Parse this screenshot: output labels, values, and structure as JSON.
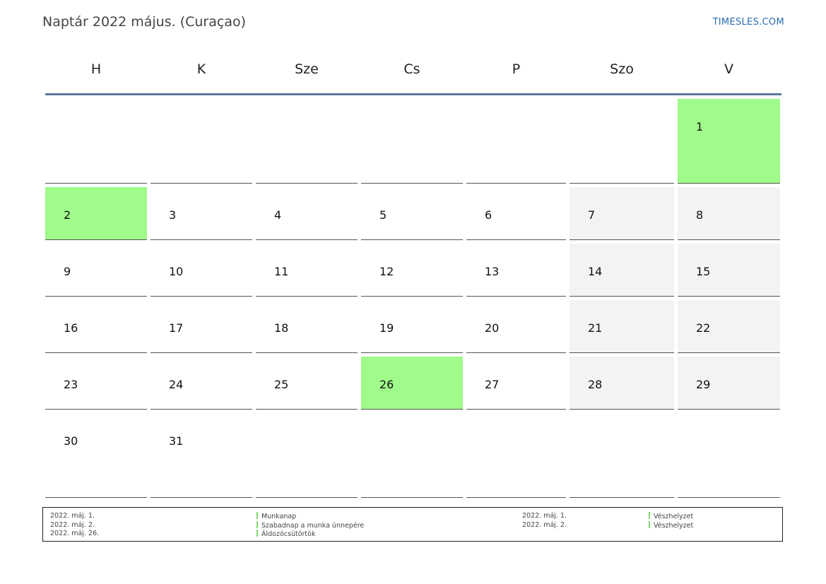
{
  "title": "Naptár 2022 május. (Curaçao)",
  "brand": "TIMESLES.COM",
  "colors": {
    "holiday": "#9ffb8a",
    "weekend": "#f3f3f3",
    "header_rule": "#5b77a0",
    "link": "#2a6db5"
  },
  "weekdays": [
    "H",
    "K",
    "Sze",
    "Cs",
    "P",
    "Szo",
    "V"
  ],
  "weeks": [
    [
      "",
      "",
      "",
      "",
      "",
      "",
      "1"
    ],
    [
      "2",
      "3",
      "4",
      "5",
      "6",
      "7",
      "8"
    ],
    [
      "9",
      "10",
      "11",
      "12",
      "13",
      "14",
      "15"
    ],
    [
      "16",
      "17",
      "18",
      "19",
      "20",
      "21",
      "22"
    ],
    [
      "23",
      "24",
      "25",
      "26",
      "27",
      "28",
      "29"
    ],
    [
      "30",
      "31",
      "",
      "",
      "",
      "",
      ""
    ]
  ],
  "holidays": [
    "1",
    "2",
    "26"
  ],
  "legend": {
    "left_dates": [
      "2022. máj. 1.",
      "2022. máj. 2.",
      "2022. máj. 26."
    ],
    "left_names": [
      "Munkanap",
      "Szabadnap a munka ünnepére",
      "Áldozócsütörtök"
    ],
    "right_dates": [
      "2022. máj. 1.",
      "2022. máj. 2."
    ],
    "right_names": [
      "Vészhelyzet",
      "Vészhelyzet"
    ]
  }
}
